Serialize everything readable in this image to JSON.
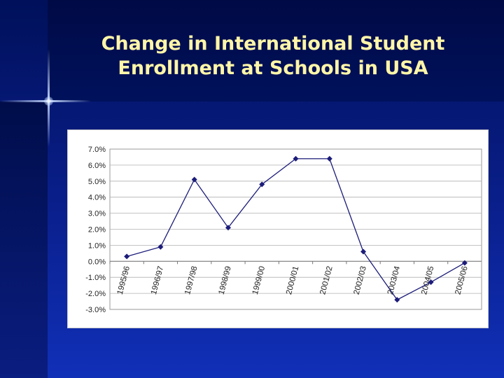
{
  "slide": {
    "title_line1": "Change in International Student",
    "title_line2": "Enrollment at Schools in USA"
  },
  "colors": {
    "background": "#0a1f8c",
    "title": "#fff6a8",
    "series_line": "#1c1c7a",
    "gridline": "#b0b0b0"
  },
  "chart_data": {
    "type": "line",
    "title": "",
    "xlabel": "",
    "ylabel": "",
    "categories": [
      "1995/96",
      "1996/97",
      "1997/98",
      "1998/99",
      "1999/00",
      "2000/01",
      "2001/02",
      "2002/03",
      "2003/04",
      "2004/05",
      "2005/06"
    ],
    "series": [
      {
        "values": [
          0.3,
          0.9,
          5.1,
          2.1,
          4.8,
          6.4,
          6.4,
          0.6,
          -2.4,
          -1.3,
          -0.1
        ]
      }
    ],
    "ylim": [
      -3.0,
      7.0
    ],
    "yticks": [
      "7.0%",
      "6.0%",
      "5.0%",
      "4.0%",
      "3.0%",
      "2.0%",
      "1.0%",
      "0.0%",
      "-1.0%",
      "-2.0%",
      "-3.0%"
    ],
    "grid": "horizontal",
    "legend": "none",
    "marker": "diamond"
  }
}
